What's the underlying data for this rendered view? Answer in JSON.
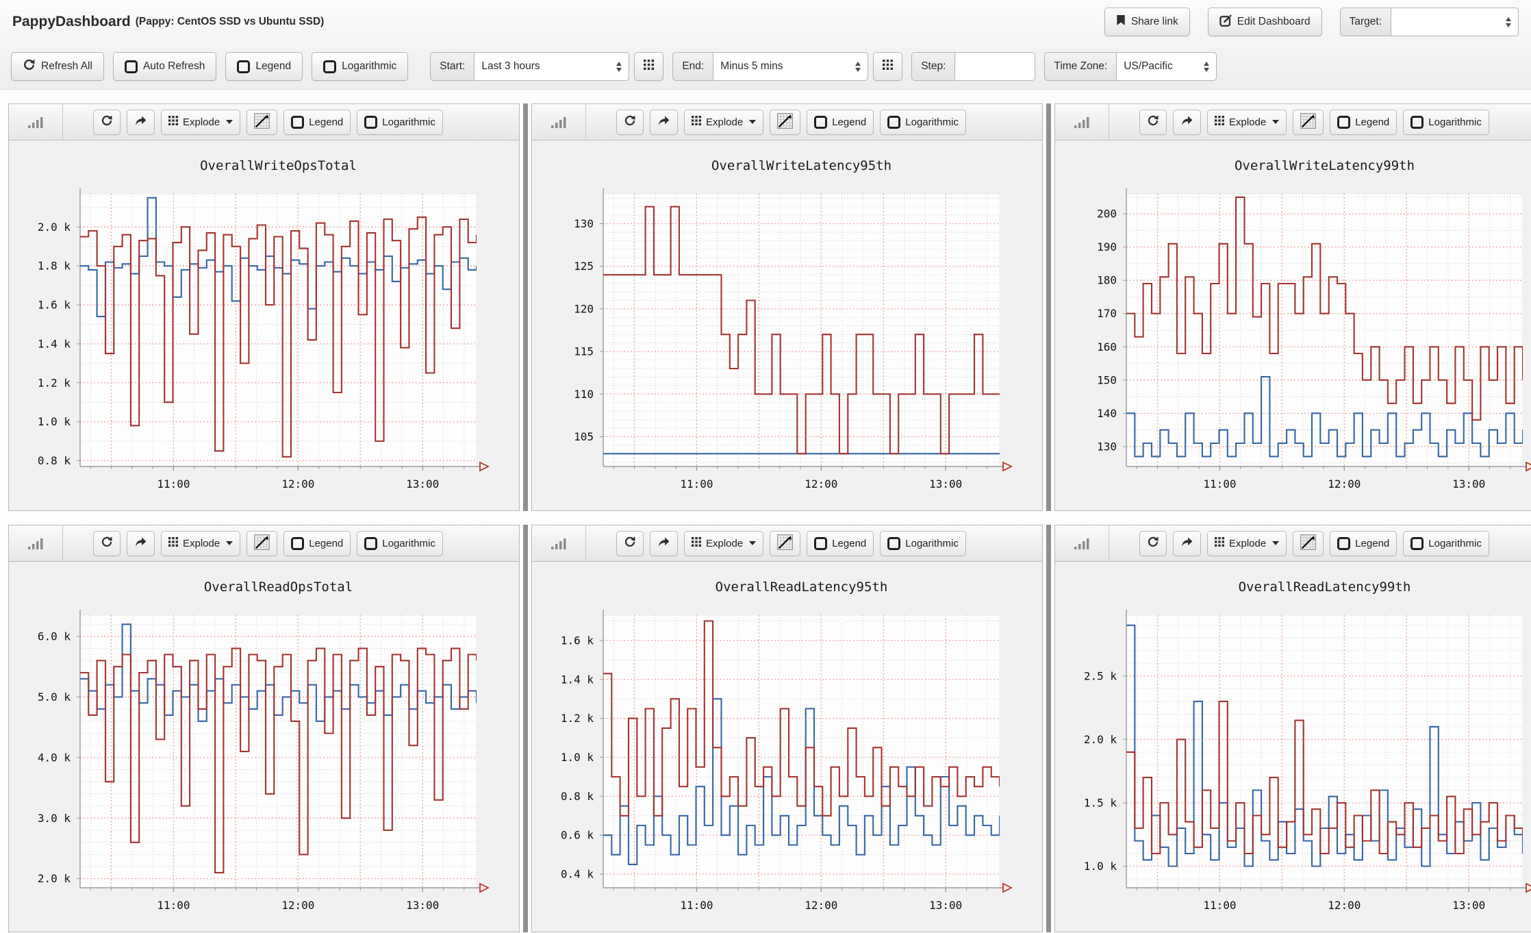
{
  "header": {
    "title": "PappyDashboard",
    "subtitle": "(Pappy: CentOS SSD vs Ubuntu SSD)",
    "share_label": "Share link",
    "edit_label": "Edit Dashboard",
    "target_label": "Target:",
    "target_value": ""
  },
  "toolbar": {
    "refresh_all": "Refresh All",
    "auto_refresh": "Auto Refresh",
    "legend": "Legend",
    "logarithmic": "Logarithmic",
    "start_label": "Start:",
    "start_value": "Last 3 hours",
    "end_label": "End:",
    "end_value": "Minus 5 mins",
    "step_label": "Step:",
    "step_value": "",
    "timezone_label": "Time Zone:",
    "timezone_value": "US/Pacific"
  },
  "panel_toolbar": {
    "explode": "Explode",
    "legend": "Legend",
    "logarithmic": "Logarithmic"
  },
  "colors": {
    "series_red": "#a33430",
    "series_blue": "#3566a5",
    "grid_major": "#eda49d",
    "grid_minor": "#c9c9c9",
    "axis": "#9a9a9a",
    "arrow": "#b03a2e",
    "plot_bg": "#fdfdfd",
    "tick_text": "#111111"
  },
  "chart_data": [
    {
      "type": "line",
      "title": "OverallWriteOpsTotal",
      "ylim": [
        770,
        2170
      ],
      "y_minor_step": 100,
      "yticks": [
        {
          "v": 2000,
          "label": "2.0 k"
        },
        {
          "v": 1800,
          "label": "1.8 k"
        },
        {
          "v": 1600,
          "label": "1.6 k"
        },
        {
          "v": 1400,
          "label": "1.4 k"
        },
        {
          "v": 1200,
          "label": "1.2 k"
        },
        {
          "v": 1000,
          "label": "1.0 k"
        },
        {
          "v": 800,
          "label": "0.8 k"
        }
      ],
      "x": {
        "min": 615,
        "max": 806,
        "minor_step": 10,
        "major_step": 30,
        "ticks": [
          {
            "v": 660,
            "label": "11:00"
          },
          {
            "v": 720,
            "label": "12:00"
          },
          {
            "v": 780,
            "label": "13:00"
          }
        ]
      },
      "series": [
        {
          "name": "series-blue",
          "color": "#3566a5",
          "values": [
            1800,
            1780,
            1540,
            1820,
            1790,
            1810,
            1760,
            1850,
            2150,
            1820,
            1800,
            1640,
            1780,
            1810,
            1790,
            1830,
            1770,
            1800,
            1620,
            1840,
            1800,
            1780,
            1850,
            1790,
            1760,
            1830,
            1810,
            1580,
            1800,
            1820,
            1770,
            1840,
            1800,
            1760,
            1820,
            1780,
            1850,
            1720,
            1790,
            1810,
            1830,
            1760,
            1800,
            1680,
            1820,
            1840,
            1780,
            1800
          ]
        },
        {
          "name": "series-red",
          "color": "#a33430",
          "values": [
            1950,
            1980,
            1800,
            1350,
            1900,
            1960,
            980,
            1930,
            1940,
            1750,
            1100,
            1920,
            2000,
            1450,
            1880,
            1970,
            850,
            1960,
            1900,
            1300,
            1940,
            2010,
            1600,
            1950,
            820,
            1980,
            1890,
            1420,
            2020,
            1960,
            1150,
            1900,
            2030,
            1550,
            1970,
            900,
            2040,
            1930,
            1380,
            1990,
            2050,
            1250,
            1960,
            2000,
            1480,
            2040,
            1920,
            1960
          ]
        }
      ]
    },
    {
      "type": "line",
      "title": "OverallWriteLatency95th",
      "ylim": [
        101.5,
        133.5
      ],
      "y_minor_step": 1,
      "yticks": [
        {
          "v": 130,
          "label": "130"
        },
        {
          "v": 125,
          "label": "125"
        },
        {
          "v": 120,
          "label": "120"
        },
        {
          "v": 115,
          "label": "115"
        },
        {
          "v": 110,
          "label": "110"
        },
        {
          "v": 105,
          "label": "105"
        }
      ],
      "x": {
        "min": 615,
        "max": 806,
        "minor_step": 10,
        "major_step": 30,
        "ticks": [
          {
            "v": 660,
            "label": "11:00"
          },
          {
            "v": 720,
            "label": "12:00"
          },
          {
            "v": 780,
            "label": "13:00"
          }
        ]
      },
      "series": [
        {
          "name": "series-blue",
          "color": "#3566a5",
          "values": [
            103,
            103,
            103,
            103,
            103,
            103,
            103,
            103,
            103,
            103,
            103,
            103,
            103,
            103,
            103,
            103,
            103,
            103,
            103,
            103,
            103,
            103,
            103,
            103,
            103,
            103,
            103,
            103,
            103,
            103,
            103,
            103,
            103,
            103,
            103,
            103,
            103,
            103,
            103,
            103,
            103,
            103,
            103,
            103,
            103,
            103,
            103,
            103
          ]
        },
        {
          "name": "series-red",
          "color": "#a33430",
          "values": [
            124,
            124,
            124,
            124,
            124,
            132,
            124,
            124,
            132,
            124,
            124,
            124,
            124,
            124,
            117,
            113,
            117,
            121,
            110,
            110,
            117,
            110,
            110,
            103,
            110,
            110,
            117,
            110,
            103,
            110,
            117,
            117,
            110,
            110,
            103,
            110,
            110,
            117,
            110,
            110,
            103,
            110,
            110,
            110,
            117,
            110,
            110,
            110
          ]
        }
      ]
    },
    {
      "type": "line",
      "title": "OverallWriteLatency99th",
      "ylim": [
        124,
        206
      ],
      "y_minor_step": 5,
      "yticks": [
        {
          "v": 200,
          "label": "200"
        },
        {
          "v": 190,
          "label": "190"
        },
        {
          "v": 180,
          "label": "180"
        },
        {
          "v": 170,
          "label": "170"
        },
        {
          "v": 160,
          "label": "160"
        },
        {
          "v": 150,
          "label": "150"
        },
        {
          "v": 140,
          "label": "140"
        },
        {
          "v": 130,
          "label": "130"
        }
      ],
      "x": {
        "min": 615,
        "max": 806,
        "minor_step": 10,
        "major_step": 30,
        "ticks": [
          {
            "v": 660,
            "label": "11:00"
          },
          {
            "v": 720,
            "label": "12:00"
          },
          {
            "v": 780,
            "label": "13:00"
          }
        ]
      },
      "series": [
        {
          "name": "series-blue",
          "color": "#3566a5",
          "values": [
            140,
            127,
            131,
            127,
            135,
            131,
            127,
            140,
            131,
            127,
            131,
            135,
            127,
            131,
            140,
            131,
            151,
            127,
            131,
            135,
            131,
            127,
            140,
            131,
            135,
            127,
            131,
            140,
            127,
            135,
            131,
            140,
            127,
            131,
            135,
            140,
            131,
            127,
            135,
            131,
            140,
            131,
            127,
            135,
            131,
            140,
            131,
            135
          ]
        },
        {
          "name": "series-red",
          "color": "#a33430",
          "values": [
            170,
            163,
            179,
            170,
            181,
            191,
            158,
            181,
            170,
            158,
            179,
            191,
            170,
            205,
            191,
            169,
            179,
            158,
            179,
            179,
            170,
            181,
            191,
            170,
            181,
            179,
            170,
            158,
            150,
            160,
            150,
            143,
            150,
            160,
            143,
            150,
            160,
            150,
            143,
            160,
            150,
            138,
            160,
            150,
            160,
            143,
            160,
            150
          ]
        }
      ]
    },
    {
      "type": "line",
      "title": "OverallReadOpsTotal",
      "ylim": [
        1850,
        6350
      ],
      "y_minor_step": 200,
      "yticks": [
        {
          "v": 6000,
          "label": "6.0 k"
        },
        {
          "v": 5000,
          "label": "5.0 k"
        },
        {
          "v": 4000,
          "label": "4.0 k"
        },
        {
          "v": 3000,
          "label": "3.0 k"
        },
        {
          "v": 2000,
          "label": "2.0 k"
        }
      ],
      "x": {
        "min": 615,
        "max": 806,
        "minor_step": 10,
        "major_step": 30,
        "ticks": [
          {
            "v": 660,
            "label": "11:00"
          },
          {
            "v": 720,
            "label": "12:00"
          },
          {
            "v": 780,
            "label": "13:00"
          }
        ]
      },
      "series": [
        {
          "name": "series-blue",
          "color": "#3566a5",
          "values": [
            5300,
            5100,
            4800,
            5200,
            5000,
            6200,
            5100,
            4900,
            5300,
            5200,
            4700,
            5100,
            5000,
            5200,
            4600,
            5100,
            5300,
            4900,
            5200,
            5000,
            4800,
            5100,
            5200,
            4700,
            5000,
            5100,
            4900,
            5200,
            4600,
            5000,
            5100,
            4800,
            5200,
            5000,
            4900,
            5100,
            4700,
            5000,
            5200,
            4800,
            5100,
            4900,
            5000,
            5200,
            4800,
            5000,
            5100,
            4900
          ]
        },
        {
          "name": "series-red",
          "color": "#a33430",
          "values": [
            5400,
            4700,
            5600,
            3600,
            5500,
            5700,
            2600,
            5400,
            5600,
            4300,
            5700,
            5500,
            3200,
            5600,
            4800,
            5700,
            2100,
            5500,
            5800,
            4100,
            5700,
            5600,
            3400,
            5500,
            5700,
            4600,
            2400,
            5600,
            5800,
            4400,
            5700,
            3000,
            5600,
            5800,
            4700,
            5500,
            2800,
            5700,
            5600,
            4200,
            5800,
            5700,
            3300,
            5600,
            5800,
            4800,
            5700,
            5600
          ]
        }
      ]
    },
    {
      "type": "line",
      "title": "OverallReadLatency95th",
      "ylim": [
        330,
        1730
      ],
      "y_minor_step": 100,
      "yticks": [
        {
          "v": 1600,
          "label": "1.6 k"
        },
        {
          "v": 1400,
          "label": "1.4 k"
        },
        {
          "v": 1200,
          "label": "1.2 k"
        },
        {
          "v": 1000,
          "label": "1.0 k"
        },
        {
          "v": 800,
          "label": "0.8 k"
        },
        {
          "v": 600,
          "label": "0.6 k"
        },
        {
          "v": 400,
          "label": "0.4 k"
        }
      ],
      "x": {
        "min": 615,
        "max": 806,
        "minor_step": 10,
        "major_step": 30,
        "ticks": [
          {
            "v": 660,
            "label": "11:00"
          },
          {
            "v": 720,
            "label": "12:00"
          },
          {
            "v": 780,
            "label": "13:00"
          }
        ]
      },
      "series": [
        {
          "name": "series-blue",
          "color": "#3566a5",
          "values": [
            600,
            500,
            750,
            450,
            650,
            550,
            800,
            600,
            500,
            700,
            550,
            850,
            650,
            1300,
            600,
            750,
            500,
            650,
            550,
            900,
            600,
            700,
            550,
            650,
            1250,
            700,
            600,
            550,
            750,
            650,
            500,
            700,
            600,
            850,
            550,
            650,
            950,
            700,
            600,
            550,
            900,
            650,
            750,
            600,
            700,
            650,
            600,
            700
          ]
        },
        {
          "name": "series-red",
          "color": "#a33430",
          "values": [
            1430,
            900,
            700,
            1200,
            800,
            1250,
            700,
            1150,
            1300,
            850,
            1250,
            950,
            1700,
            1050,
            800,
            900,
            750,
            1100,
            850,
            950,
            800,
            1250,
            900,
            750,
            1050,
            850,
            700,
            950,
            800,
            1150,
            900,
            800,
            1050,
            750,
            950,
            850,
            800,
            950,
            750,
            900,
            850,
            950,
            800,
            900,
            850,
            950,
            900,
            850
          ]
        }
      ]
    },
    {
      "type": "line",
      "title": "OverallReadLatency99th",
      "ylim": [
        830,
        2980
      ],
      "y_minor_step": 100,
      "yticks": [
        {
          "v": 2500,
          "label": "2.5 k"
        },
        {
          "v": 2000,
          "label": "2.0 k"
        },
        {
          "v": 1500,
          "label": "1.5 k"
        },
        {
          "v": 1000,
          "label": "1.0 k"
        }
      ],
      "x": {
        "min": 615,
        "max": 806,
        "minor_step": 10,
        "major_step": 30,
        "ticks": [
          {
            "v": 660,
            "label": "11:00"
          },
          {
            "v": 720,
            "label": "12:00"
          },
          {
            "v": 780,
            "label": "13:00"
          }
        ]
      },
      "series": [
        {
          "name": "series-blue",
          "color": "#3566a5",
          "values": [
            2900,
            1200,
            1050,
            1400,
            1150,
            1000,
            1300,
            1100,
            2300,
            1250,
            1050,
            1500,
            1150,
            1300,
            1000,
            1600,
            1200,
            1050,
            1350,
            1100,
            1450,
            1200,
            1000,
            1300,
            1550,
            1100,
            1250,
            1050,
            1400,
            1200,
            1600,
            1050,
            1300,
            1150,
            1450,
            1000,
            2100,
            1250,
            1100,
            1350,
            1200,
            1500,
            1050,
            1300,
            1150,
            1400,
            1250,
            1100
          ]
        },
        {
          "name": "series-red",
          "color": "#a33430",
          "values": [
            1900,
            1300,
            1700,
            1100,
            1500,
            1250,
            2000,
            1350,
            1150,
            1600,
            1300,
            2300,
            1200,
            1500,
            1100,
            1400,
            1250,
            1700,
            1150,
            1350,
            2150,
            1250,
            1450,
            1100,
            1300,
            1500,
            1150,
            1400,
            1200,
            1600,
            1100,
            1350,
            1250,
            1500,
            1150,
            1300,
            1400,
            1200,
            1550,
            1100,
            1450,
            1250,
            1350,
            1500,
            1200,
            1400,
            1300,
            1250
          ]
        }
      ]
    }
  ]
}
